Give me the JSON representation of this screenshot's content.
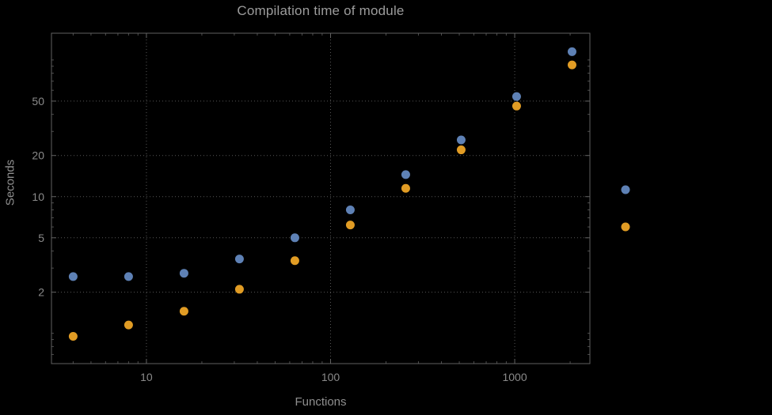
{
  "chart_data": {
    "type": "scatter",
    "title": "Compilation time of module",
    "xlabel": "Functions",
    "ylabel": "Seconds",
    "x_scale": "log",
    "y_scale": "log",
    "grid": "dotted",
    "legend_position": "right",
    "xlim": [
      3.05,
      2560
    ],
    "ylim": [
      0.6,
      157
    ],
    "x_ticks": [
      10,
      100,
      1000
    ],
    "y_ticks": [
      2,
      5,
      10,
      20,
      50
    ],
    "x": [
      4,
      8,
      16,
      32,
      64,
      128,
      256,
      512,
      1024,
      2048
    ],
    "series": [
      {
        "color": "#5e81b5",
        "values": [
          2.6,
          2.6,
          2.75,
          3.5,
          5.0,
          8.0,
          14.5,
          26,
          54,
          115
        ]
      },
      {
        "color": "#e19c24",
        "values": [
          0.95,
          1.15,
          1.45,
          2.1,
          3.4,
          6.2,
          11.5,
          22,
          46,
          92
        ]
      }
    ],
    "legend_markers": [
      {
        "color": "#5e81b5"
      },
      {
        "color": "#e19c24"
      }
    ]
  },
  "colors": {
    "background": "#000000",
    "frame": "#616161",
    "grid": "#575757",
    "minor_tick": "#4d4d4d",
    "title_text": "#9c9c9c",
    "label_text": "#8f8f8f",
    "tick_text": "#8a8a8a"
  }
}
